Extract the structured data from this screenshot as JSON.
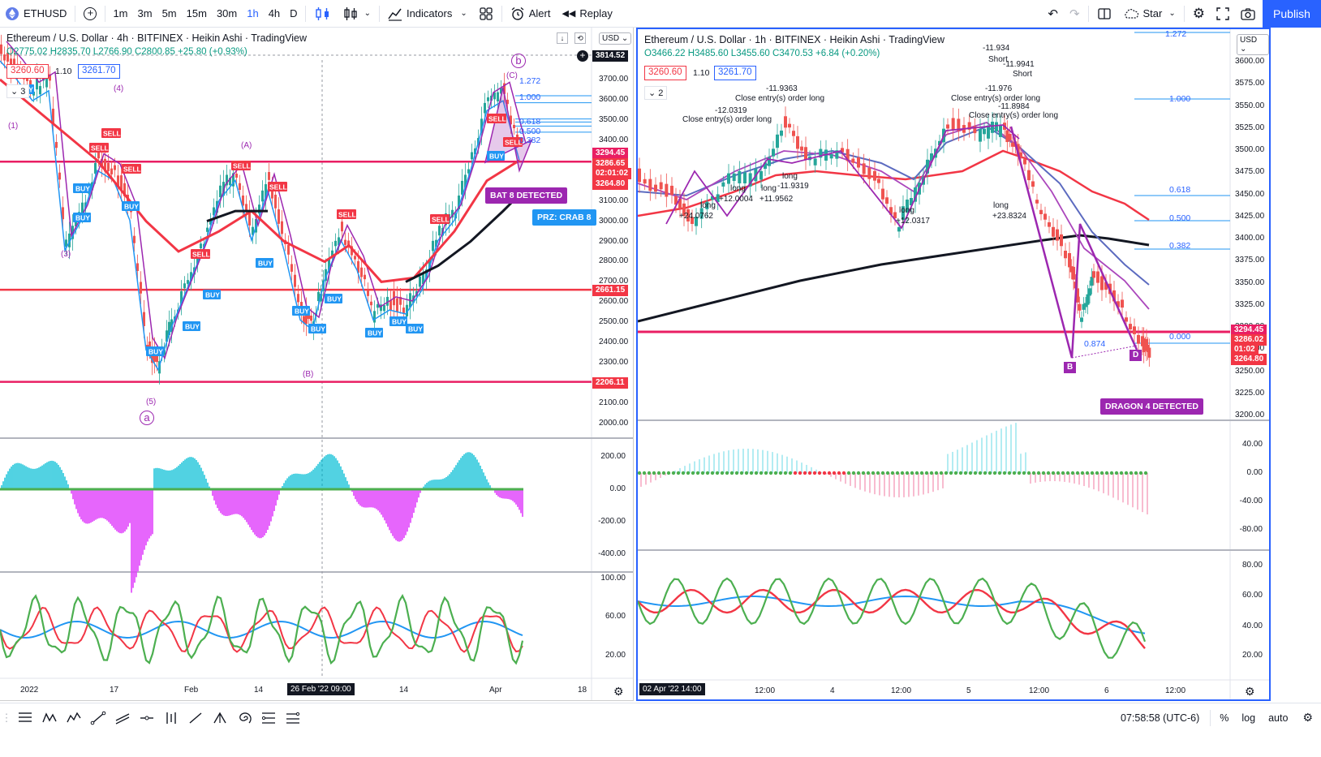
{
  "toolbar": {
    "symbol": "ETHUSD",
    "intervals": [
      "1m",
      "3m",
      "5m",
      "15m",
      "30m",
      "1h",
      "4h",
      "D"
    ],
    "active_interval": "1h",
    "indicators_label": "Indicators",
    "alert_label": "Alert",
    "replay_label": "Replay",
    "layout_name": "Star",
    "publish_label": "Publish"
  },
  "left_chart": {
    "title": "Ethereum / U.S. Dollar · 4h · BITFINEX · Heikin Ashi · TradingView",
    "ohlc": {
      "o": "O2775.02",
      "h": "H2835.70",
      "l": "L2766.90",
      "c": "C2800.85",
      "chg": "+25.80 (+0.93%)"
    },
    "sell_price": "3260.60",
    "spread": "1.10",
    "buy_price": "3261.70",
    "panes_count": "3",
    "currency": "USD",
    "price_axis": [
      "3700.00",
      "3600.00",
      "3500.00",
      "3400.00",
      "3300.00",
      "3200.00",
      "3100.00",
      "3000.00",
      "2900.00",
      "2800.00",
      "2700.00",
      "2600.00",
      "2500.00",
      "2400.00",
      "2300.00",
      "2200.00",
      "2100.00",
      "2000.00"
    ],
    "price_tags": [
      {
        "label": "3814.52",
        "color": "#131722"
      },
      {
        "label": "3294.45",
        "color": "#e91e63"
      },
      {
        "label": "3286.65",
        "color": "#f23645"
      },
      {
        "label": "02:01:02",
        "color": "#f23645"
      },
      {
        "label": "3264.80",
        "color": "#f23645"
      },
      {
        "label": "2661.15",
        "color": "#f23645"
      },
      {
        "label": "2206.11",
        "color": "#f23645"
      }
    ],
    "osc1_axis": [
      "200.00",
      "0.00",
      "-200.00",
      "-400.00"
    ],
    "osc2_axis": [
      "100.00",
      "60.00",
      "20.00"
    ],
    "time_axis": [
      "2022",
      "17",
      "Feb",
      "14",
      "14",
      "Apr",
      "18"
    ],
    "time_cursor": "26 Feb '22   09:00",
    "wave_labels": [
      "(1)",
      "(4)",
      "(3)",
      "(5)",
      "a",
      "(A)",
      "(B)",
      "b",
      "(C)"
    ],
    "fib_levels": [
      "1.272",
      "1.000",
      "0.618",
      "0.500",
      "0.382"
    ],
    "detect_label": "BAT 8 DETECTED",
    "prz_label": "PRZ: CRAB 8"
  },
  "right_chart": {
    "title": "Ethereum / U.S. Dollar · 1h · BITFINEX · Heikin Ashi · TradingView",
    "ohlc": {
      "o": "O3466.22",
      "h": "H3485.60",
      "l": "L3455.60",
      "c": "C3470.53",
      "chg": "+6.84 (+0.20%)"
    },
    "sell_price": "3260.60",
    "spread": "1.10",
    "buy_price": "3261.70",
    "panes_count": "2",
    "currency": "USD",
    "price_axis": [
      "3600.00",
      "3575.00",
      "3550.00",
      "3525.00",
      "3500.00",
      "3475.00",
      "3450.00",
      "3425.00",
      "3400.00",
      "3375.00",
      "3350.00",
      "3325.00",
      "3300.00",
      "3275.00",
      "3250.00",
      "3225.00",
      "3200.00"
    ],
    "price_tags": [
      {
        "label": "3294.45",
        "color": "#e91e63"
      },
      {
        "label": "3286.02",
        "color": "#f23645"
      },
      {
        "label": "01:02",
        "color": "#f23645"
      },
      {
        "label": "3264.80",
        "color": "#f23645"
      }
    ],
    "osc1_axis": [
      "40.00",
      "0.00",
      "-40.00",
      "-80.00"
    ],
    "osc2_axis": [
      "80.00",
      "60.00",
      "40.00",
      "20.00"
    ],
    "time_axis": [
      "12:00",
      "4",
      "12:00",
      "5",
      "12:00",
      "6",
      "12:00"
    ],
    "time_cursor": "02 Apr '22   14:00",
    "fib_levels": [
      "1.272",
      "1.000",
      "0.618",
      "0.500",
      "0.382",
      "0.000"
    ],
    "fib_ratio": "0.874",
    "notes": [
      {
        "text": "-12.0319"
      },
      {
        "text": "Close entry(s) order long"
      },
      {
        "text": "-11.9363"
      },
      {
        "text": "Close entry(s) order long"
      },
      {
        "text": "long"
      },
      {
        "text": "+24.0762"
      },
      {
        "text": "long"
      },
      {
        "text": "+12.0004"
      },
      {
        "text": "long"
      },
      {
        "text": "+11.9562"
      },
      {
        "text": "long"
      },
      {
        "text": "-11.9319"
      },
      {
        "text": "long"
      },
      {
        "text": "+12.0317"
      },
      {
        "text": "-11.934"
      },
      {
        "text": "Short"
      },
      {
        "text": "-11.9941"
      },
      {
        "text": "Short"
      },
      {
        "text": "-11.976"
      },
      {
        "text": "Close entry(s) order long"
      },
      {
        "text": "-11.8984"
      },
      {
        "text": "Close entry(s) order long"
      },
      {
        "text": "long"
      },
      {
        "text": "+23.8324"
      }
    ],
    "pattern_points": [
      "B",
      "D"
    ],
    "detect_label": "DRAGON 4 DETECTED"
  },
  "bottom_bar": {
    "clock": "07:58:58 (UTC-6)",
    "percent": "%",
    "log": "log",
    "auto": "auto"
  }
}
